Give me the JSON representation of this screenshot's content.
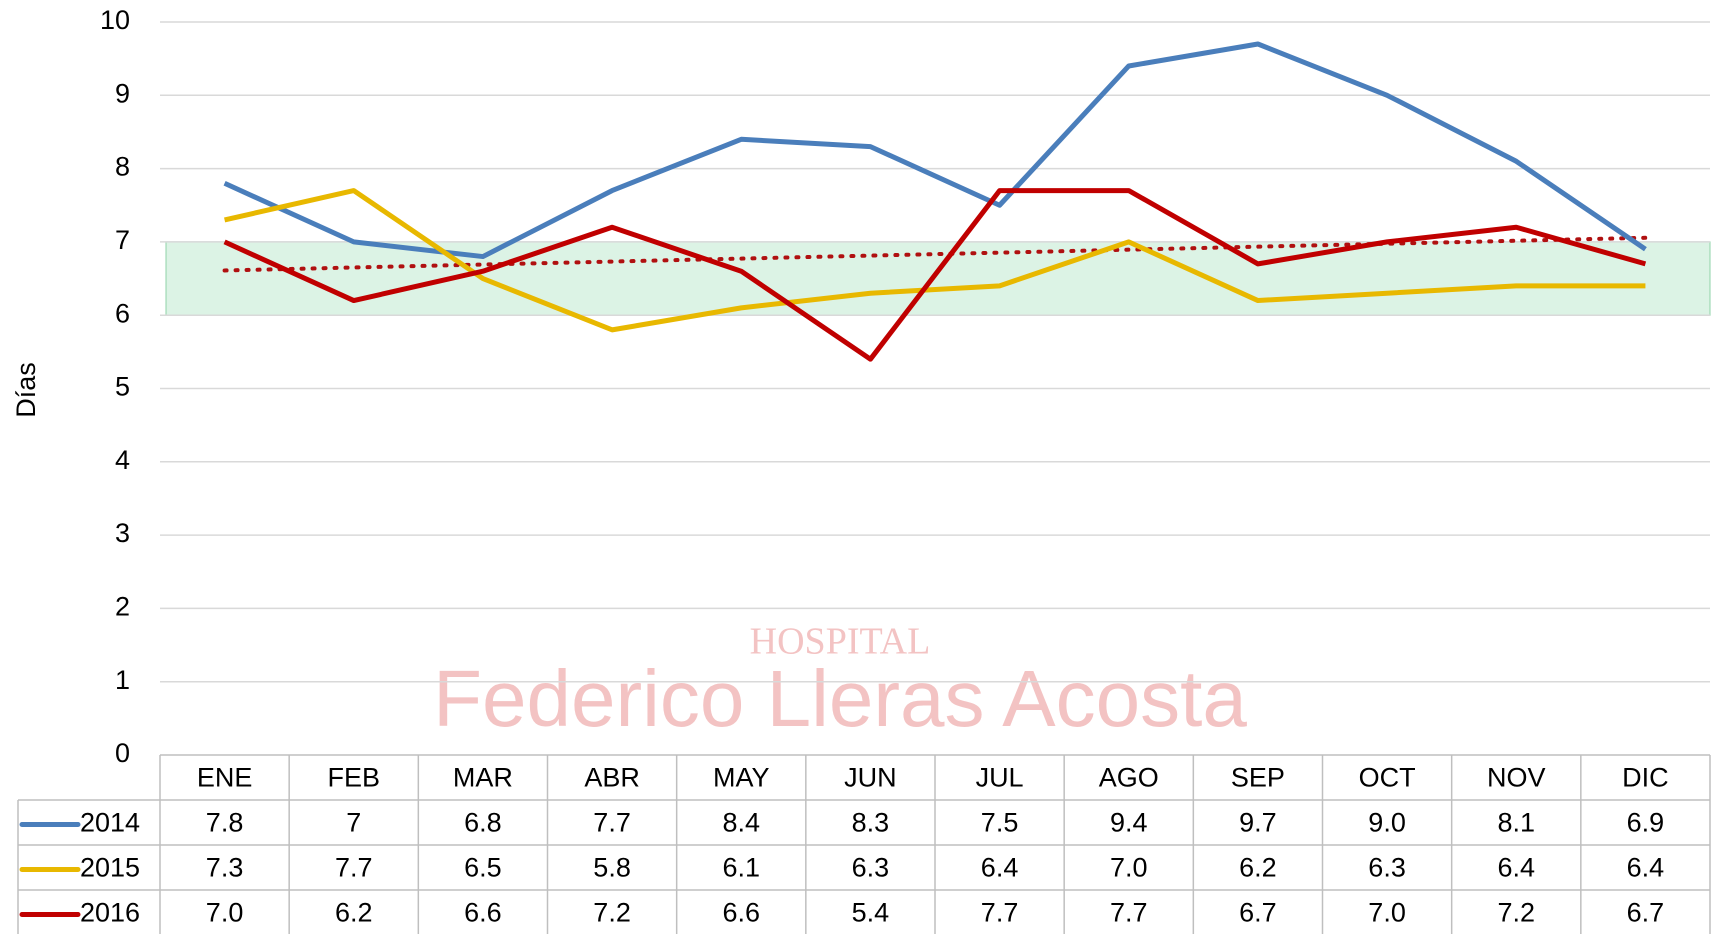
{
  "chart_data": {
    "type": "line",
    "y_label": "Días",
    "categories": [
      "ENE",
      "FEB",
      "MAR",
      "ABR",
      "MAY",
      "JUN",
      "JUL",
      "AGO",
      "SEP",
      "OCT",
      "NOV",
      "DIC"
    ],
    "series": [
      {
        "name": "2014",
        "color": "#4a7ebb",
        "values": [
          7.8,
          7,
          6.8,
          7.7,
          8.4,
          8.3,
          7.5,
          9.4,
          9.7,
          9.0,
          8.1,
          6.9
        ],
        "value_labels": [
          "7.8",
          "7",
          "6.8",
          "7.7",
          "8.4",
          "8.3",
          "7.5",
          "9.4",
          "9.7",
          "9.0",
          "8.1",
          "6.9"
        ]
      },
      {
        "name": "2015",
        "color": "#e8b800",
        "values": [
          7.3,
          7.7,
          6.5,
          5.8,
          6.1,
          6.3,
          6.4,
          7.0,
          6.2,
          6.3,
          6.4,
          6.4
        ],
        "value_labels": [
          "7.3",
          "7.7",
          "6.5",
          "5.8",
          "6.1",
          "6.3",
          "6.4",
          "7.0",
          "6.2",
          "6.3",
          "6.4",
          "6.4"
        ]
      },
      {
        "name": "2016",
        "color": "#c00000",
        "values": [
          7.0,
          6.2,
          6.6,
          7.2,
          6.6,
          5.4,
          7.7,
          7.7,
          6.7,
          7.0,
          7.2,
          6.7
        ],
        "value_labels": [
          "7.0",
          "6.2",
          "6.6",
          "7.2",
          "6.6",
          "5.4",
          "7.7",
          "7.7",
          "6.7",
          "7.0",
          "7.2",
          "6.7"
        ]
      }
    ],
    "ylim": [
      0,
      10
    ],
    "yticks": [
      0,
      1,
      2,
      3,
      4,
      5,
      6,
      7,
      8,
      9,
      10
    ],
    "grid": true,
    "target_band": [
      6,
      7
    ],
    "band_color": "#d6f1e0",
    "trendline_series": 2,
    "trendline_color": "#b01010",
    "watermark": [
      "HOSPITAL",
      "Federico Lleras Acosta"
    ]
  }
}
